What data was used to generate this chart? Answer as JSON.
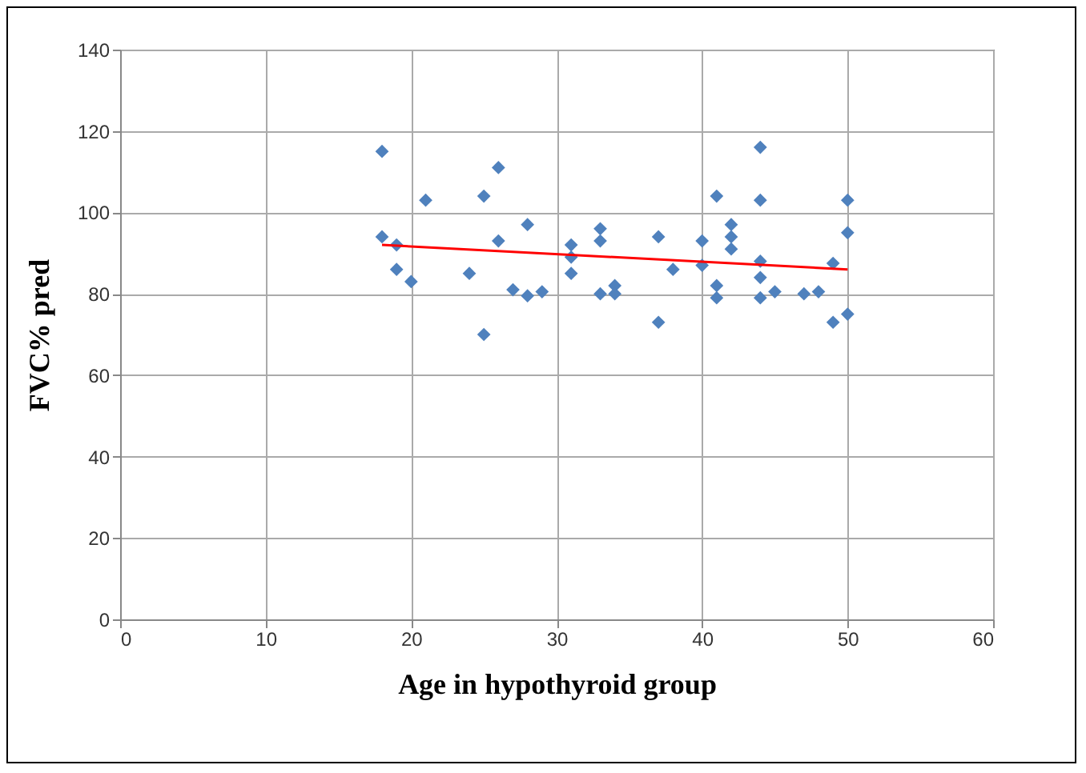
{
  "chart_data": {
    "type": "scatter",
    "xlabel": "Age in hypothyroid group",
    "ylabel": "FVC% pred",
    "series": [
      {
        "color": "#4f81bd",
        "marker": "diamond",
        "x": [
          18,
          18,
          19,
          19,
          20,
          21,
          24,
          25,
          25,
          26,
          26,
          27,
          28,
          28,
          29,
          31,
          31,
          31,
          33,
          33,
          33,
          34,
          34,
          37,
          37,
          38,
          40,
          40,
          41,
          41,
          41,
          42,
          42,
          42,
          44,
          44,
          44,
          44,
          44,
          45,
          47,
          48,
          49,
          49,
          50,
          50,
          50
        ],
        "values": [
          115,
          94,
          92,
          86,
          83,
          103,
          85,
          104,
          70,
          111,
          93,
          81,
          97,
          79.5,
          80.5,
          92,
          89,
          85,
          96,
          93,
          80,
          82,
          80,
          94,
          73,
          86,
          93,
          87,
          104,
          82,
          79,
          97,
          94,
          91,
          116,
          103,
          88,
          84,
          79,
          80.5,
          80,
          80.5,
          87.5,
          73,
          103,
          95,
          75
        ]
      },
      {
        "type": "line",
        "color": "#ff0000",
        "x": [
          18,
          50
        ],
        "values": [
          92,
          86
        ]
      }
    ],
    "xlim": [
      0,
      60
    ],
    "xticks": [
      0,
      10,
      20,
      30,
      40,
      50,
      60
    ],
    "ylim": [
      0,
      140
    ],
    "yticks": [
      0,
      20,
      40,
      60,
      80,
      100,
      120,
      140
    ],
    "grid": true
  }
}
